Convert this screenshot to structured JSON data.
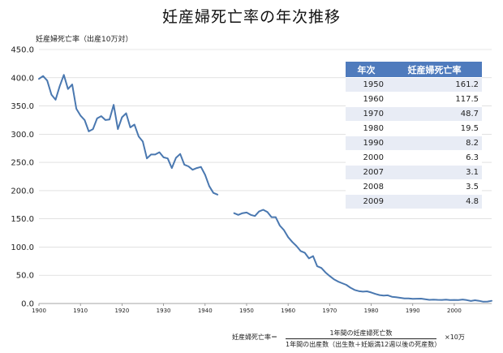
{
  "chart_data": {
    "type": "line",
    "title": "妊産婦死亡率の年次推移",
    "ylabel": "妊産婦死亡率（出産10万対）",
    "xlabel": "",
    "ylim": [
      0,
      450
    ],
    "xlim": [
      1900,
      2009
    ],
    "y_ticks": [
      "0.0",
      "50.0",
      "100.0",
      "150.0",
      "200.0",
      "250.0",
      "300.0",
      "350.0",
      "400.0",
      "450.0"
    ],
    "x_ticks": [
      "1900",
      "1910",
      "1920",
      "1930",
      "1940",
      "1950",
      "1960",
      "1970",
      "1980",
      "1990",
      "2000"
    ],
    "grid": true,
    "series": [
      {
        "color": "#4a78b0",
        "segments": [
          [
            [
              1900,
              398
            ],
            [
              1901,
              403
            ],
            [
              1902,
              395
            ],
            [
              1903,
              370
            ],
            [
              1904,
              361
            ],
            [
              1905,
              385
            ],
            [
              1906,
              405
            ],
            [
              1907,
              380
            ],
            [
              1908,
              388
            ],
            [
              1909,
              345
            ],
            [
              1910,
              333
            ],
            [
              1911,
              325
            ],
            [
              1912,
              305
            ],
            [
              1913,
              309
            ],
            [
              1914,
              328
            ],
            [
              1915,
              332
            ],
            [
              1916,
              325
            ],
            [
              1917,
              326
            ],
            [
              1918,
              352
            ],
            [
              1919,
              309
            ],
            [
              1920,
              330
            ],
            [
              1921,
              337
            ],
            [
              1922,
              312
            ],
            [
              1923,
              317
            ],
            [
              1924,
              296
            ],
            [
              1925,
              287
            ],
            [
              1926,
              257
            ],
            [
              1927,
              264
            ],
            [
              1928,
              264
            ],
            [
              1929,
              268
            ],
            [
              1930,
              259
            ],
            [
              1931,
              257
            ],
            [
              1932,
              240
            ],
            [
              1933,
              258
            ],
            [
              1934,
              265
            ],
            [
              1935,
              246
            ],
            [
              1936,
              243
            ],
            [
              1937,
              237
            ],
            [
              1938,
              240
            ],
            [
              1939,
              242
            ],
            [
              1940,
              228
            ],
            [
              1941,
              208
            ],
            [
              1942,
              196
            ],
            [
              1943,
              193
            ]
          ],
          [
            [
              1947,
              160
            ],
            [
              1948,
              157
            ],
            [
              1949,
              160
            ],
            [
              1950,
              161.2
            ],
            [
              1951,
              157
            ],
            [
              1952,
              155
            ],
            [
              1953,
              163
            ],
            [
              1954,
              166
            ],
            [
              1955,
              162
            ],
            [
              1956,
              153
            ],
            [
              1957,
              153
            ],
            [
              1958,
              138
            ],
            [
              1959,
              130
            ],
            [
              1960,
              117.5
            ],
            [
              1961,
              109
            ],
            [
              1962,
              102
            ],
            [
              1963,
              93
            ],
            [
              1964,
              90
            ],
            [
              1965,
              80
            ],
            [
              1966,
              84
            ],
            [
              1967,
              66
            ],
            [
              1968,
              63
            ],
            [
              1969,
              55
            ],
            [
              1970,
              48.7
            ],
            [
              1971,
              43
            ],
            [
              1972,
              39
            ],
            [
              1973,
              36
            ],
            [
              1974,
              33
            ],
            [
              1975,
              28
            ],
            [
              1976,
              24
            ],
            [
              1977,
              22
            ],
            [
              1978,
              21
            ],
            [
              1979,
              21.5
            ],
            [
              1980,
              19.5
            ],
            [
              1981,
              17
            ],
            [
              1982,
              15
            ],
            [
              1983,
              14
            ],
            [
              1984,
              14.5
            ],
            [
              1985,
              12
            ],
            [
              1986,
              11
            ],
            [
              1987,
              10
            ],
            [
              1988,
              9
            ],
            [
              1989,
              9
            ],
            [
              1990,
              8.2
            ],
            [
              1991,
              8.5
            ],
            [
              1992,
              8.6
            ],
            [
              1993,
              7.5
            ],
            [
              1994,
              6.5
            ],
            [
              1995,
              6.9
            ],
            [
              1996,
              6.4
            ],
            [
              1997,
              6.3
            ],
            [
              1998,
              6.9
            ],
            [
              1999,
              6.0
            ],
            [
              2000,
              6.3
            ],
            [
              2001,
              6.2
            ],
            [
              2002,
              7.1
            ],
            [
              2003,
              6.0
            ],
            [
              2004,
              4.4
            ],
            [
              2005,
              5.7
            ],
            [
              2006,
              4.8
            ],
            [
              2007,
              3.1
            ],
            [
              2008,
              3.5
            ],
            [
              2009,
              4.8
            ]
          ]
        ]
      }
    ]
  },
  "table": {
    "headers": [
      "年次",
      "妊産婦死亡率"
    ],
    "rows": [
      [
        "1950",
        "161.2"
      ],
      [
        "1960",
        "117.5"
      ],
      [
        "1970",
        "48.7"
      ],
      [
        "1980",
        "19.5"
      ],
      [
        "1990",
        "8.2"
      ],
      [
        "2000",
        "6.3"
      ],
      [
        "2007",
        "3.1"
      ],
      [
        "2008",
        "3.5"
      ],
      [
        "2009",
        "4.8"
      ]
    ]
  },
  "formula": {
    "lhs": "妊産婦死亡率＝",
    "numerator": "1年間の妊産婦死亡数",
    "denominator": "1年間の出産数（出生数＋妊娠満12週以後の死産数）",
    "multiplier": "×10万"
  }
}
